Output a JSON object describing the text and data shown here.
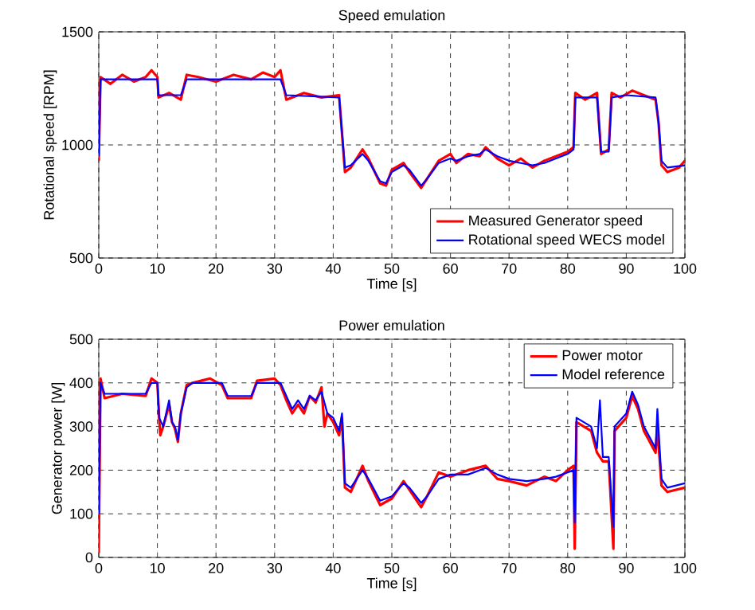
{
  "chart_data": [
    {
      "type": "line",
      "title": "Speed emulation",
      "xlabel": "Time [s]",
      "ylabel": "Rotational speed [RPM]",
      "xlim": [
        0,
        100
      ],
      "ylim": [
        500,
        1500
      ],
      "xticks": [
        0,
        10,
        20,
        30,
        40,
        50,
        60,
        70,
        80,
        90,
        100
      ],
      "yticks": [
        500,
        1000,
        1500
      ],
      "grid": true,
      "legend": "bottom right",
      "line_style": "solid",
      "marker": "none",
      "series": [
        {
          "name": "Measured Generator speed",
          "color": "#ff0000",
          "x": [
            0,
            0.3,
            2,
            4,
            6,
            8,
            9,
            10,
            10.2,
            12,
            14,
            15,
            17,
            20,
            23,
            26,
            28,
            30,
            31,
            32,
            35,
            38,
            41,
            42,
            43,
            45,
            46,
            48,
            49,
            50,
            52,
            53,
            55,
            56,
            58,
            60,
            61,
            63,
            65,
            66,
            68,
            70,
            72,
            74,
            76,
            78,
            80,
            81,
            81.3,
            83,
            85,
            85.7,
            87,
            87.5,
            89,
            91,
            93,
            95,
            95.5,
            96,
            97,
            99,
            100
          ],
          "values": [
            930,
            1300,
            1270,
            1310,
            1280,
            1300,
            1330,
            1300,
            1210,
            1230,
            1200,
            1310,
            1300,
            1280,
            1310,
            1290,
            1320,
            1300,
            1330,
            1200,
            1230,
            1210,
            1220,
            880,
            900,
            980,
            940,
            830,
            820,
            890,
            920,
            880,
            810,
            850,
            930,
            960,
            920,
            960,
            950,
            990,
            940,
            910,
            940,
            900,
            930,
            950,
            970,
            990,
            1230,
            1200,
            1230,
            960,
            980,
            1230,
            1210,
            1240,
            1220,
            1200,
            1100,
            910,
            880,
            900,
            930
          ]
        },
        {
          "name": "Rotational speed WECS model",
          "color": "#0000ff",
          "x": [
            0,
            0.3,
            10,
            10.2,
            14,
            15,
            31,
            32,
            41,
            42,
            43,
            45,
            46,
            48,
            49,
            50,
            52,
            53,
            55,
            56,
            58,
            60,
            61,
            63,
            65,
            66,
            68,
            70,
            72,
            74,
            76,
            78,
            80,
            81,
            81.3,
            85,
            85.7,
            87,
            87.5,
            90,
            95,
            95.5,
            96,
            97,
            100
          ],
          "values": [
            950,
            1290,
            1290,
            1220,
            1220,
            1290,
            1290,
            1220,
            1210,
            900,
            910,
            960,
            930,
            840,
            830,
            880,
            910,
            890,
            820,
            850,
            920,
            940,
            930,
            950,
            960,
            980,
            950,
            930,
            920,
            910,
            920,
            940,
            960,
            980,
            1210,
            1210,
            970,
            970,
            1210,
            1220,
            1210,
            1100,
            930,
            900,
            910
          ]
        }
      ]
    },
    {
      "type": "line",
      "title": "Power emulation",
      "xlabel": "Time [s]",
      "ylabel": "Generator power [W]",
      "xlim": [
        0,
        100
      ],
      "ylim": [
        0,
        500
      ],
      "xticks": [
        0,
        10,
        20,
        30,
        40,
        50,
        60,
        70,
        80,
        90,
        100
      ],
      "yticks": [
        0,
        100,
        200,
        300,
        400,
        500
      ],
      "grid": true,
      "legend": "top right",
      "line_style": "solid",
      "marker": "none",
      "series": [
        {
          "name": "Power motor",
          "color": "#ff0000",
          "x": [
            0,
            0.3,
            1,
            4,
            8,
            9,
            10,
            10.3,
            10.5,
            11,
            12,
            12.5,
            13,
            13.5,
            14,
            15,
            16,
            19,
            21,
            22,
            26,
            27,
            30,
            31,
            32,
            33,
            34,
            35,
            36,
            37,
            38,
            38.5,
            39,
            40,
            41,
            41.5,
            42,
            43,
            45,
            46,
            48,
            50,
            52,
            53,
            55,
            56,
            58,
            60,
            63,
            66,
            68,
            70,
            73,
            76,
            78,
            80,
            81,
            81.2,
            81.5,
            84,
            85,
            86,
            87,
            87.8,
            88,
            90,
            91,
            92,
            93,
            95,
            95.3,
            96,
            97,
            100
          ],
          "values": [
            10,
            410,
            365,
            375,
            370,
            410,
            400,
            320,
            280,
            300,
            350,
            310,
            295,
            265,
            330,
            395,
            400,
            410,
            395,
            365,
            365,
            405,
            410,
            395,
            360,
            330,
            350,
            330,
            370,
            355,
            390,
            300,
            330,
            310,
            280,
            320,
            160,
            150,
            210,
            175,
            120,
            135,
            175,
            155,
            115,
            140,
            195,
            185,
            200,
            210,
            180,
            175,
            165,
            185,
            175,
            200,
            210,
            20,
            310,
            290,
            240,
            220,
            220,
            20,
            290,
            320,
            370,
            340,
            290,
            240,
            300,
            165,
            150,
            160
          ]
        },
        {
          "name": "Model reference",
          "color": "#0000ff",
          "x": [
            0,
            0.3,
            1,
            8,
            9,
            10,
            10.3,
            11,
            12,
            12.5,
            13,
            13.5,
            14,
            15,
            16,
            21,
            22,
            26,
            27,
            31,
            32,
            33,
            34,
            35,
            36,
            37,
            38,
            39,
            40,
            41,
            41.5,
            42,
            43,
            45,
            46,
            48,
            50,
            52,
            53,
            55,
            56,
            58,
            60,
            63,
            66,
            68,
            70,
            73,
            76,
            78,
            80,
            81,
            81.2,
            81.5,
            84,
            85,
            85.5,
            86,
            87,
            87.8,
            88,
            90,
            91,
            92,
            93,
            95,
            95.3,
            96,
            97,
            100
          ],
          "values": [
            100,
            400,
            375,
            375,
            400,
            400,
            320,
            300,
            360,
            310,
            300,
            270,
            330,
            390,
            400,
            400,
            370,
            370,
            400,
            400,
            370,
            340,
            360,
            340,
            370,
            360,
            380,
            330,
            320,
            290,
            330,
            170,
            160,
            200,
            180,
            130,
            140,
            170,
            160,
            125,
            140,
            180,
            190,
            190,
            205,
            190,
            180,
            175,
            180,
            185,
            195,
            200,
            80,
            320,
            300,
            250,
            360,
            230,
            230,
            70,
            300,
            330,
            380,
            350,
            300,
            250,
            340,
            180,
            160,
            170
          ]
        }
      ]
    }
  ]
}
